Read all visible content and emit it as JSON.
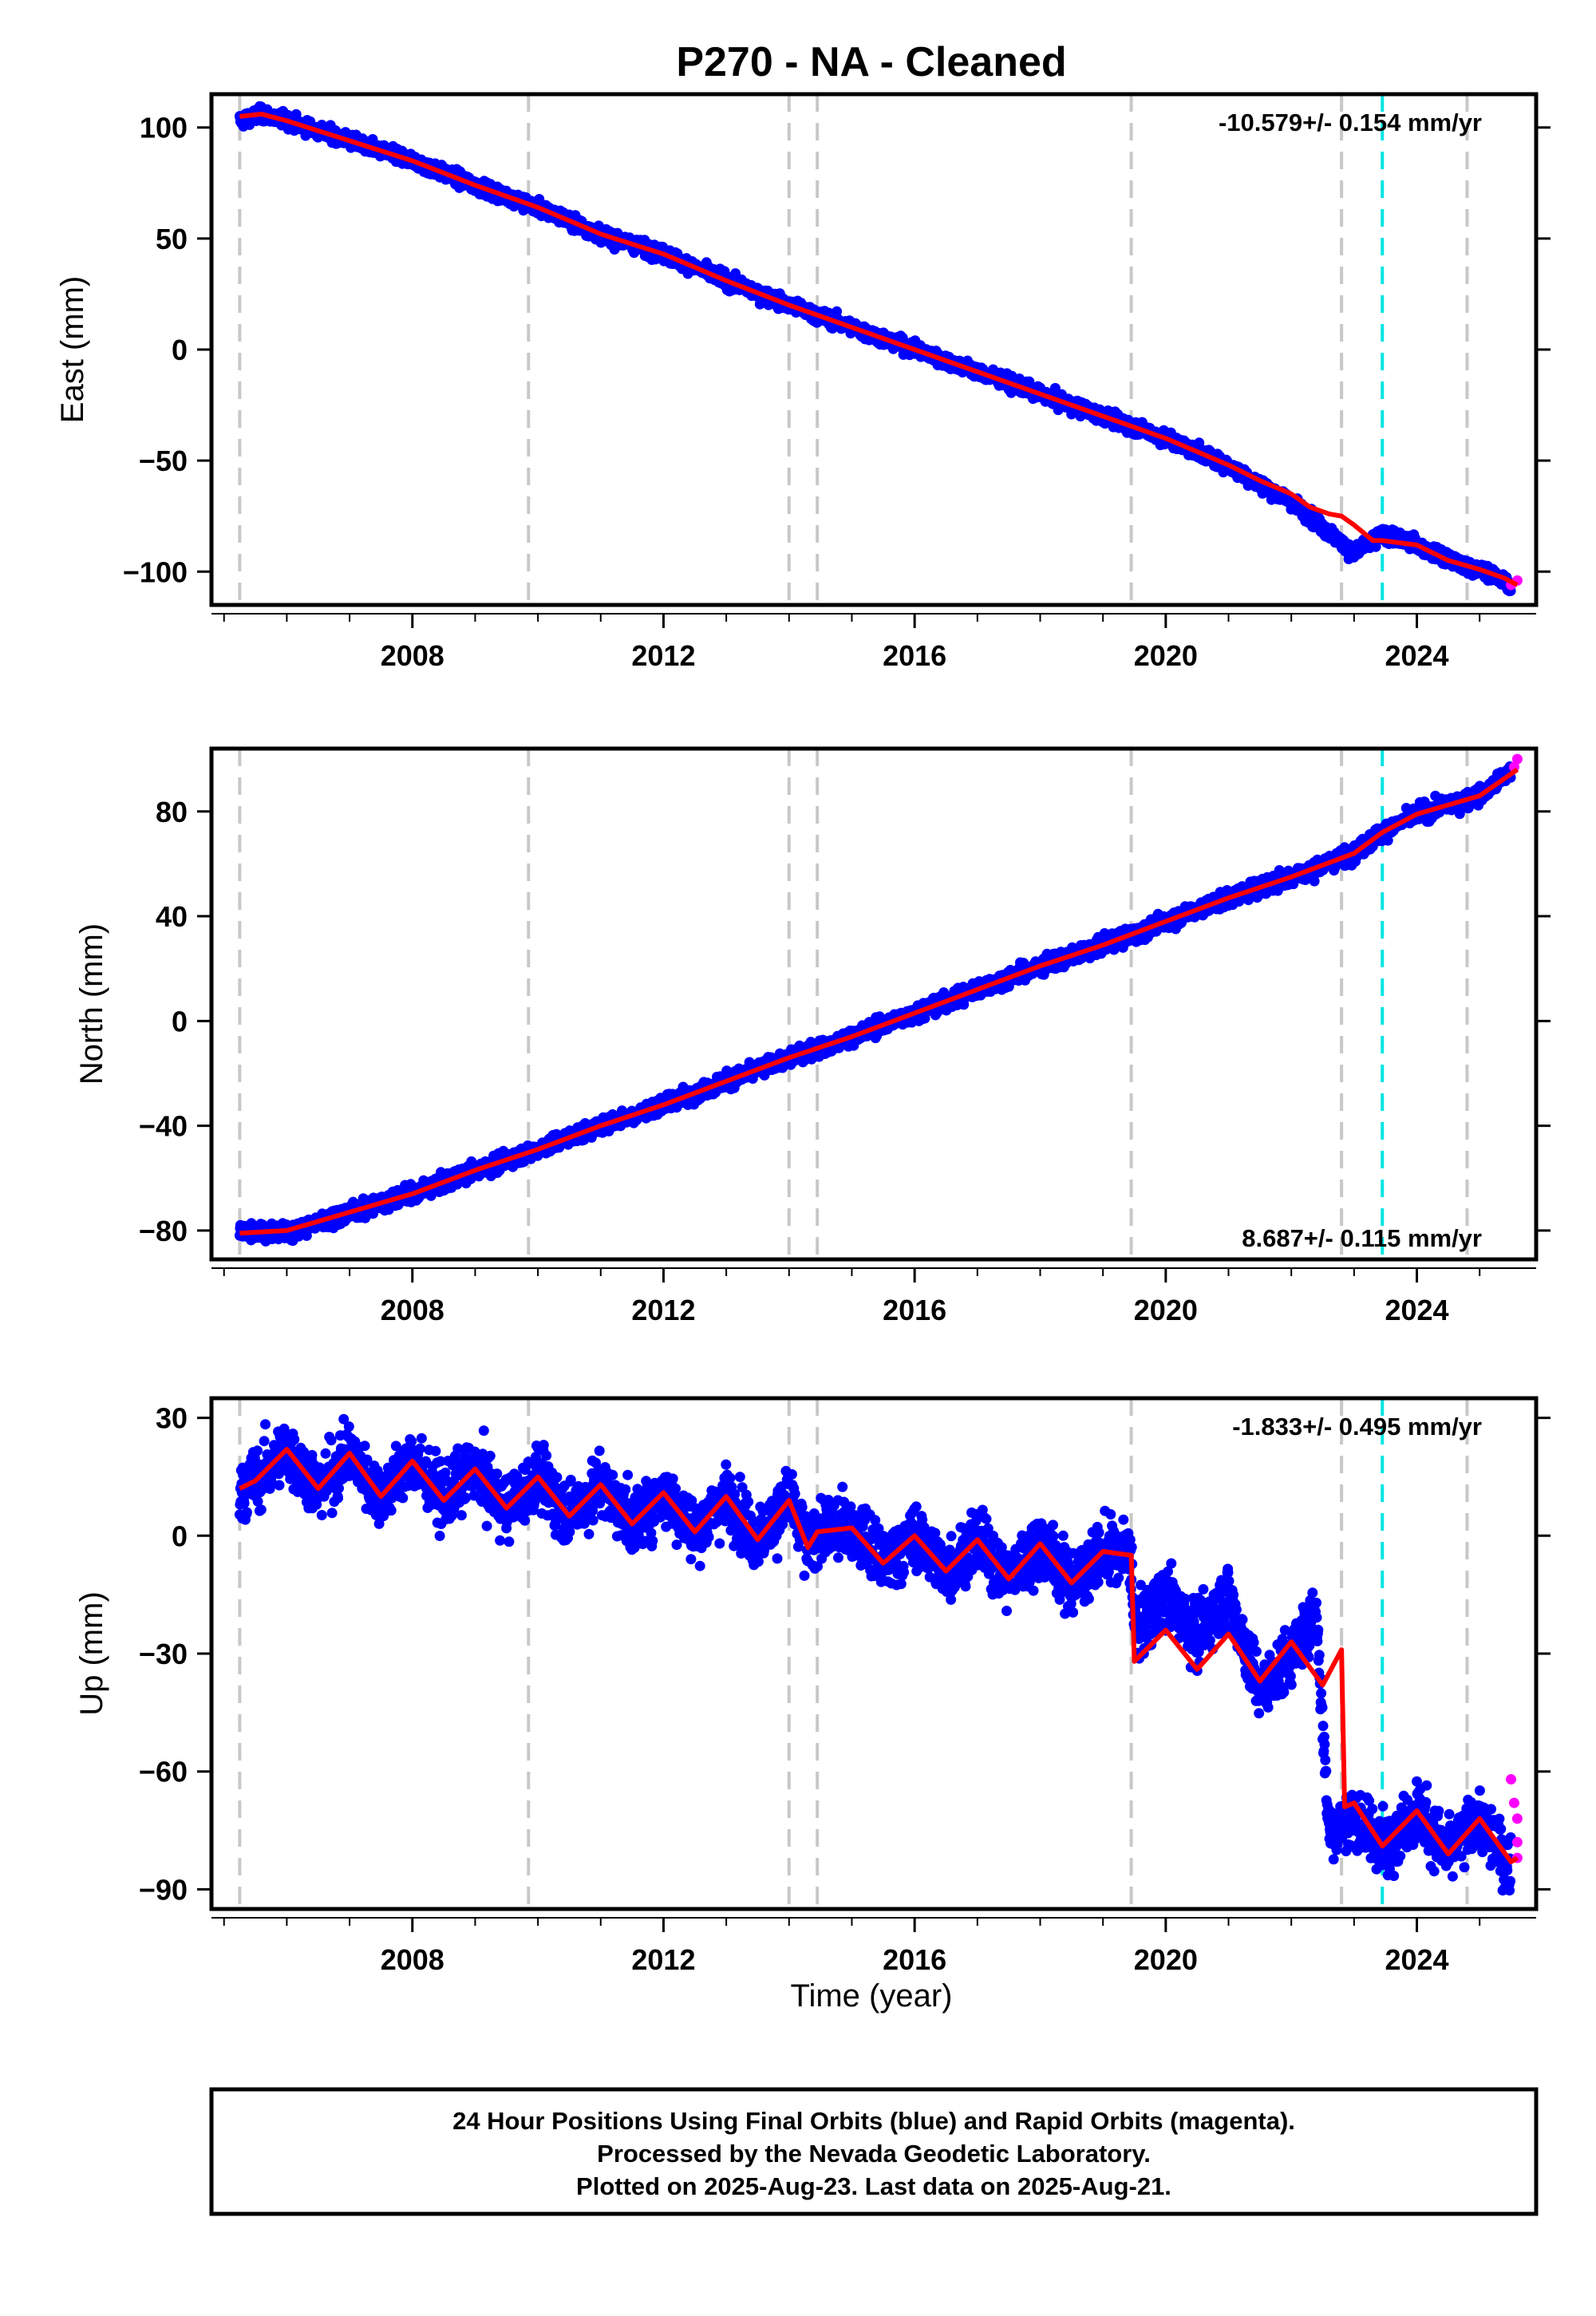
{
  "title": "P270  - NA - Cleaned",
  "footer": {
    "line1": "24 Hour Positions Using Final Orbits (blue) and Rapid Orbits (magenta).",
    "line2": "Processed by the Nevada Geodetic Laboratory.",
    "line3": "Plotted on 2025-Aug-23. Last data on 2025-Aug-21."
  },
  "colors": {
    "final": "#0000ff",
    "rapid": "#ff00ff",
    "model": "#ff0000",
    "equipment_change": "#c8c8c8",
    "earthquake": "#00e5e5"
  },
  "xaxis_label": "Time (year)",
  "chart_data": [
    {
      "type": "scatter",
      "component": "east",
      "ylabel": "East (mm)",
      "xlim": [
        2004.8,
        2025.9
      ],
      "ylim": [
        -115,
        115
      ],
      "xticks": [
        2008,
        2012,
        2016,
        2020,
        2024
      ],
      "xtick_labels": [
        "2008",
        "2012",
        "2016",
        "2020",
        "2024"
      ],
      "yticks": [
        100,
        50,
        0,
        -50,
        -100
      ],
      "ytick_labels": [
        "100",
        "50",
        "0",
        "−50",
        "−100"
      ],
      "rate_text": "-10.579+/- 0.154 mm/yr",
      "rate_position": "top-right",
      "grid": false,
      "equipment_changes": [
        2005.25,
        2009.85,
        2014.0,
        2014.45,
        2019.45,
        2022.8,
        2024.8
      ],
      "earthquake": 2023.45,
      "series": [
        {
          "role": "model",
          "x": [
            2005.25,
            2005.6,
            2006.0,
            2007.0,
            2008.0,
            2009.0,
            2010.0,
            2011.0,
            2012.0,
            2013.0,
            2014.0,
            2015.0,
            2016.0,
            2017.0,
            2018.0,
            2019.0,
            2020.0,
            2021.0,
            2021.5,
            2022.0,
            2022.3,
            2022.6,
            2022.8,
            2023.0,
            2023.3,
            2023.45,
            2024.0,
            2024.5,
            2025.0,
            2025.4,
            2025.6
          ],
          "y": [
            105,
            106,
            103,
            94,
            85,
            74,
            64,
            52,
            43,
            31,
            20,
            10,
            0,
            -10,
            -20,
            -30,
            -40,
            -52,
            -59,
            -65,
            -71,
            -74,
            -75,
            -79,
            -86,
            -86,
            -88,
            -95,
            -99,
            -103,
            -106
          ]
        },
        {
          "role": "final",
          "x": [
            2005.25,
            2005.6,
            2006.0,
            2007.0,
            2008.0,
            2009.0,
            2010.0,
            2011.0,
            2012.0,
            2013.0,
            2014.0,
            2015.0,
            2016.0,
            2017.0,
            2018.0,
            2019.0,
            2020.0,
            2021.0,
            2021.5,
            2022.0,
            2022.5,
            2023.0,
            2023.45,
            2024.0,
            2024.5,
            2025.0,
            2025.4,
            2025.5
          ],
          "y": [
            103,
            106,
            103,
            94,
            85,
            74,
            64,
            52,
            43,
            31,
            20,
            10,
            0,
            -10,
            -20,
            -30,
            -40,
            -52,
            -61,
            -68,
            -80,
            -92,
            -83,
            -88,
            -95,
            -99,
            -104,
            -108
          ]
        },
        {
          "role": "rapid",
          "x": [
            2025.5,
            2025.6
          ],
          "y": [
            -106,
            -104
          ]
        }
      ]
    },
    {
      "type": "scatter",
      "component": "north",
      "ylabel": "North (mm)",
      "xlim": [
        2004.8,
        2025.9
      ],
      "ylim": [
        -91,
        104
      ],
      "xticks": [
        2008,
        2012,
        2016,
        2020,
        2024
      ],
      "xtick_labels": [
        "2008",
        "2012",
        "2016",
        "2020",
        "2024"
      ],
      "yticks": [
        80,
        40,
        0,
        -40,
        -80
      ],
      "ytick_labels": [
        "80",
        "40",
        "0",
        "−40",
        "−80"
      ],
      "rate_text": "8.687+/- 0.115 mm/yr",
      "rate_position": "bottom-right",
      "grid": false,
      "equipment_changes": [
        2005.25,
        2009.85,
        2014.0,
        2014.45,
        2019.45,
        2022.8,
        2024.8
      ],
      "earthquake": 2023.45,
      "series": [
        {
          "role": "model",
          "x": [
            2005.25,
            2006.0,
            2007.0,
            2008.0,
            2009.0,
            2010.0,
            2011.0,
            2012.0,
            2013.0,
            2014.0,
            2015.0,
            2016.0,
            2017.0,
            2018.0,
            2019.0,
            2020.0,
            2021.0,
            2022.0,
            2023.0,
            2023.45,
            2024.0,
            2025.0,
            2025.6
          ],
          "y": [
            -81,
            -80,
            -73,
            -66,
            -57,
            -49,
            -40,
            -32,
            -23,
            -14,
            -6,
            3,
            12,
            21,
            29,
            38,
            47,
            55,
            64,
            72,
            79,
            86,
            96
          ]
        },
        {
          "role": "final",
          "x": [
            2005.25,
            2006.0,
            2007.0,
            2008.0,
            2009.0,
            2010.0,
            2011.0,
            2012.0,
            2013.0,
            2014.0,
            2015.0,
            2016.0,
            2017.0,
            2018.0,
            2019.0,
            2020.0,
            2021.0,
            2022.0,
            2023.0,
            2023.45,
            2024.0,
            2025.0,
            2025.5
          ],
          "y": [
            -80,
            -81,
            -73,
            -66,
            -57,
            -49,
            -40,
            -32,
            -23,
            -14,
            -6,
            3,
            12,
            21,
            29,
            38,
            47,
            55,
            64,
            72,
            79,
            86,
            95
          ]
        },
        {
          "role": "rapid",
          "x": [
            2025.55,
            2025.6
          ],
          "y": [
            97,
            100
          ]
        }
      ]
    },
    {
      "type": "scatter",
      "component": "up",
      "ylabel": "Up (mm)",
      "xlim": [
        2004.8,
        2025.9
      ],
      "ylim": [
        -95,
        35
      ],
      "xticks": [
        2008,
        2012,
        2016,
        2020,
        2024
      ],
      "xtick_labels": [
        "2008",
        "2012",
        "2016",
        "2020",
        "2024"
      ],
      "yticks": [
        30,
        0,
        -30,
        -60,
        -90
      ],
      "ytick_labels": [
        "30",
        "0",
        "−30",
        "−60",
        "−90"
      ],
      "rate_text": "-1.833+/- 0.495 mm/yr",
      "rate_position": "top-right",
      "grid": false,
      "equipment_changes": [
        2005.25,
        2009.85,
        2014.0,
        2014.45,
        2019.45,
        2022.8,
        2024.8
      ],
      "earthquake": 2023.45,
      "series": [
        {
          "role": "model",
          "x": [
            2005.25,
            2005.5,
            2006.0,
            2006.5,
            2007.0,
            2007.5,
            2008.0,
            2008.5,
            2009.0,
            2009.5,
            2010.0,
            2010.5,
            2011.0,
            2011.5,
            2012.0,
            2012.5,
            2013.0,
            2013.5,
            2014.0,
            2014.3,
            2014.45,
            2015.0,
            2015.5,
            2016.0,
            2016.5,
            2017.0,
            2017.5,
            2018.0,
            2018.5,
            2019.0,
            2019.45,
            2019.5,
            2020.0,
            2020.5,
            2021.0,
            2021.5,
            2022.0,
            2022.5,
            2022.8,
            2022.85,
            2023.0,
            2023.45,
            2024.0,
            2024.5,
            2025.0,
            2025.5,
            2025.6
          ],
          "y": [
            12,
            14,
            22,
            12,
            21,
            10,
            19,
            9,
            17,
            7,
            15,
            5,
            13,
            3,
            11,
            1,
            10,
            -1,
            9,
            -3,
            1,
            2,
            -7,
            0,
            -9,
            -1,
            -11,
            -2,
            -12,
            -4,
            -5,
            -32,
            -24,
            -34,
            -25,
            -37,
            -27,
            -38,
            -29,
            -69,
            -68,
            -79,
            -70,
            -81,
            -72,
            -83,
            -82
          ]
        },
        {
          "role": "final",
          "x": [
            2005.25,
            2005.5,
            2006.0,
            2006.5,
            2007.0,
            2007.5,
            2008.0,
            2008.5,
            2009.0,
            2009.5,
            2010.0,
            2010.5,
            2011.0,
            2011.5,
            2012.0,
            2012.5,
            2013.0,
            2013.5,
            2014.0,
            2014.3,
            2014.45,
            2015.0,
            2015.5,
            2016.0,
            2016.5,
            2017.0,
            2017.5,
            2018.0,
            2018.5,
            2019.0,
            2019.45,
            2019.5,
            2020.0,
            2020.5,
            2021.0,
            2021.5,
            2022.0,
            2022.4,
            2022.6,
            2023.0,
            2023.45,
            2024.0,
            2024.5,
            2025.0,
            2025.5
          ],
          "y": [
            12,
            14,
            22,
            12,
            21,
            10,
            19,
            9,
            17,
            7,
            15,
            5,
            13,
            3,
            11,
            1,
            10,
            -1,
            9,
            -3,
            1,
            2,
            -7,
            0,
            -9,
            -1,
            -11,
            -2,
            -12,
            -4,
            -5,
            -25,
            -15,
            -25,
            -15,
            -40,
            -30,
            -20,
            -75,
            -72,
            -79,
            -70,
            -81,
            -72,
            -85
          ]
        },
        {
          "role": "rapid",
          "x": [
            2025.5,
            2025.55,
            2025.6,
            2025.6,
            2025.6
          ],
          "y": [
            -62,
            -68,
            -72,
            -78,
            -82
          ]
        }
      ]
    }
  ]
}
